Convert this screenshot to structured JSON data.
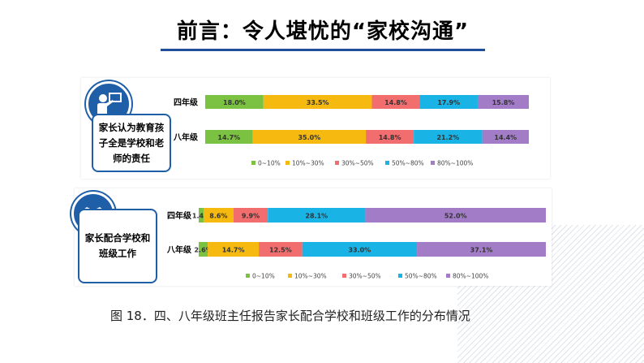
{
  "title": "前言：令人堪忧的“家校沟通”",
  "caption": "图 18．四、八年级班主任报告家长配合学校和班级工作的分布情况",
  "colors": [
    "#7cc242",
    "#f5b90f",
    "#f26d6d",
    "#1ab3e6",
    "#a27cc7"
  ],
  "panels": [
    {
      "label": "家长认为教育孩子全是学校和老师的责任",
      "icon": "teacher-board-icon"
    },
    {
      "label": "家长配合学校和班级工作",
      "icon": "handshake-icon"
    }
  ],
  "chart_data": [
    {
      "type": "bar",
      "orientation": "horizontal-stacked-100",
      "categories": [
        "四年级",
        "八年级"
      ],
      "series": [
        {
          "name": "0~10%",
          "values": [
            18.0,
            14.7
          ],
          "labels": [
            "18.0%",
            "14.7%"
          ]
        },
        {
          "name": "10%~30%",
          "values": [
            33.5,
            35.0
          ],
          "labels": [
            "33.5%",
            "35.0%"
          ]
        },
        {
          "name": "30%~50%",
          "values": [
            14.8,
            14.8
          ],
          "labels": [
            "14.8%",
            "14.8%"
          ]
        },
        {
          "name": "50%~80%",
          "values": [
            17.9,
            21.2
          ],
          "labels": [
            "17.9%",
            "21.2%"
          ]
        },
        {
          "name": "80%~100%",
          "values": [
            15.8,
            14.4
          ],
          "labels": [
            "15.8%",
            "14.4%"
          ]
        }
      ],
      "legend": "bottom"
    },
    {
      "type": "bar",
      "orientation": "horizontal-stacked-100",
      "categories": [
        "四年级",
        "八年级"
      ],
      "series": [
        {
          "name": "0~10%",
          "values": [
            1.4,
            2.6
          ],
          "labels": [
            "1.4%",
            "2.6%"
          ]
        },
        {
          "name": "10%~30%",
          "values": [
            8.6,
            14.7
          ],
          "labels": [
            "8.6%",
            "14.7%"
          ]
        },
        {
          "name": "30%~50%",
          "values": [
            9.9,
            12.5
          ],
          "labels": [
            "9.9%",
            "12.5%"
          ]
        },
        {
          "name": "50%~80%",
          "values": [
            28.1,
            33.0
          ],
          "labels": [
            "28.1%",
            "33.0%"
          ]
        },
        {
          "name": "80%~100%",
          "values": [
            52.0,
            37.1
          ],
          "labels": [
            "52.0%",
            "37.1%"
          ]
        }
      ],
      "legend": "bottom"
    }
  ]
}
